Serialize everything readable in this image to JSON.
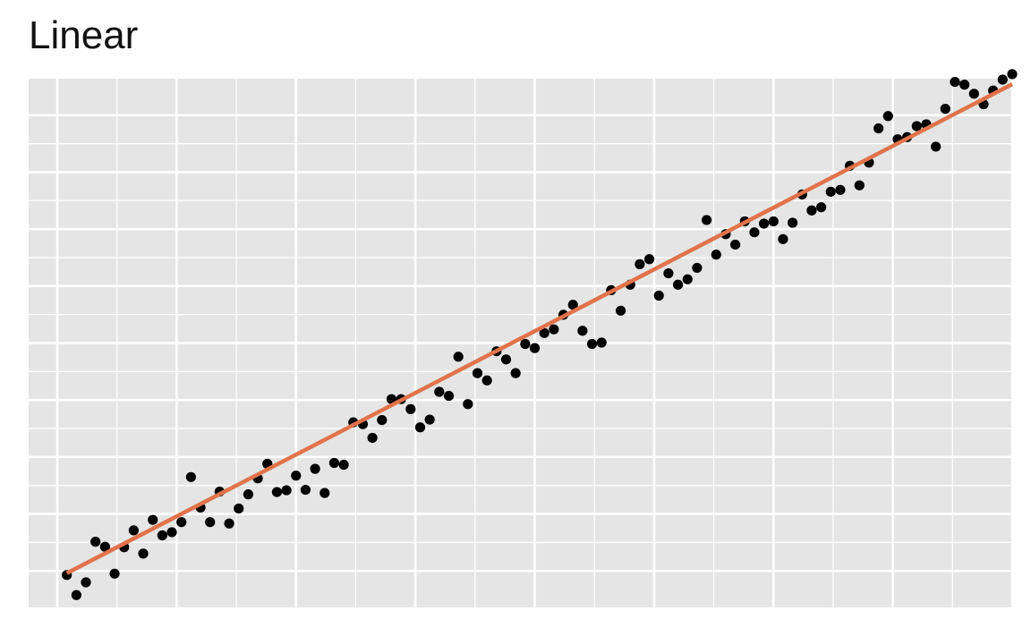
{
  "chart_data": {
    "type": "scatter",
    "title": "Linear",
    "xlabel": "",
    "ylabel": "",
    "xlim": [
      -3,
      100
    ],
    "ylim": [
      -8,
      108
    ],
    "grid": true,
    "x_ticks": [
      0,
      12.5,
      25,
      37.5,
      50,
      62.5,
      75,
      87.5,
      100
    ],
    "y_ticks": [
      0,
      12.5,
      25,
      37.5,
      50,
      62.5,
      75,
      87.5,
      100
    ],
    "points_x": [
      1,
      2,
      3,
      4,
      5,
      6,
      7,
      8,
      9,
      10,
      11,
      12,
      13,
      14,
      15,
      16,
      17,
      18,
      19,
      20,
      21,
      22,
      23,
      24,
      25,
      26,
      27,
      28,
      29,
      30,
      31,
      32,
      33,
      34,
      35,
      36,
      37,
      38,
      39,
      40,
      41,
      42,
      43,
      44,
      45,
      46,
      47,
      48,
      49,
      50,
      51,
      52,
      53,
      54,
      55,
      56,
      57,
      58,
      59,
      60,
      61,
      62,
      63,
      64,
      65,
      66,
      67,
      68,
      69,
      70,
      71,
      72,
      73,
      74,
      75,
      76,
      77,
      78,
      79,
      80,
      81,
      82,
      83,
      84,
      85,
      86,
      87,
      88,
      89,
      90,
      91,
      92,
      93,
      94,
      95,
      96,
      97,
      98,
      99,
      100
    ],
    "points_y": [
      -0.9,
      -5.3,
      -2.5,
      6.4,
      5.3,
      -0.6,
      5.2,
      8.9,
      3.8,
      11.2,
      7.8,
      8.5,
      10.7,
      20.6,
      13.9,
      10.7,
      17.4,
      10.4,
      13.7,
      16.8,
      20.3,
      23.5,
      17.3,
      17.7,
      20.9,
      17.8,
      22.4,
      17.1,
      23.7,
      23.3,
      32.6,
      32.2,
      29.2,
      33.1,
      37.7,
      37.7,
      35.5,
      31.5,
      33.2,
      39.3,
      38.4,
      47.0,
      36.6,
      43.4,
      41.8,
      48.2,
      46.4,
      43.4,
      49.8,
      48.9,
      52.2,
      53.0,
      56.2,
      58.4,
      52.7,
      49.8,
      50.1,
      61.6,
      57.1,
      62.8,
      67.3,
      68.4,
      60.4,
      65.3,
      62.8,
      64.0,
      66.5,
      77.0,
      69.4,
      73.9,
      71.6,
      76.7,
      74.3,
      76.2,
      76.7,
      72.8,
      76.4,
      82.6,
      79.1,
      79.8,
      83.2,
      83.6,
      88.9,
      84.6,
      89.6,
      97.1,
      99.8,
      94.7,
      95.2,
      97.6,
      98.0,
      93.1,
      101.4,
      107.3,
      106.7,
      104.7,
      102.4,
      105.4,
      107.8,
      109.0
    ],
    "fit": {
      "x": [
        1,
        100
      ],
      "y": [
        -0.5,
        106.8
      ]
    },
    "colors": {
      "panel": "#e5e5e5",
      "grid": "#ffffff",
      "points": "#000000",
      "fit_line": "#e0734a"
    }
  }
}
